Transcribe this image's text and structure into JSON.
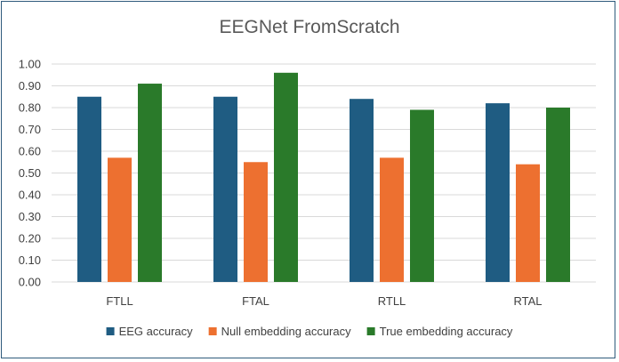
{
  "chart_data": {
    "type": "bar",
    "title": "EEGNet FromScratch",
    "categories": [
      "FTLL",
      "FTAL",
      "RTLL",
      "RTAL"
    ],
    "series": [
      {
        "name": "EEG accuracy",
        "color": "#1f5c82",
        "values": [
          0.85,
          0.85,
          0.84,
          0.82
        ]
      },
      {
        "name": "Null embedding accuracy",
        "color": "#ed7030",
        "values": [
          0.57,
          0.55,
          0.57,
          0.54
        ]
      },
      {
        "name": "True embedding accuracy",
        "color": "#2a7a2a",
        "values": [
          0.91,
          0.96,
          0.79,
          0.8
        ]
      }
    ],
    "ylim": [
      0,
      1
    ],
    "yticks": [
      "0.00",
      "0.10",
      "0.20",
      "0.30",
      "0.40",
      "0.50",
      "0.60",
      "0.70",
      "0.80",
      "0.90",
      "1.00"
    ],
    "grid": true,
    "legend_position": "bottom"
  }
}
